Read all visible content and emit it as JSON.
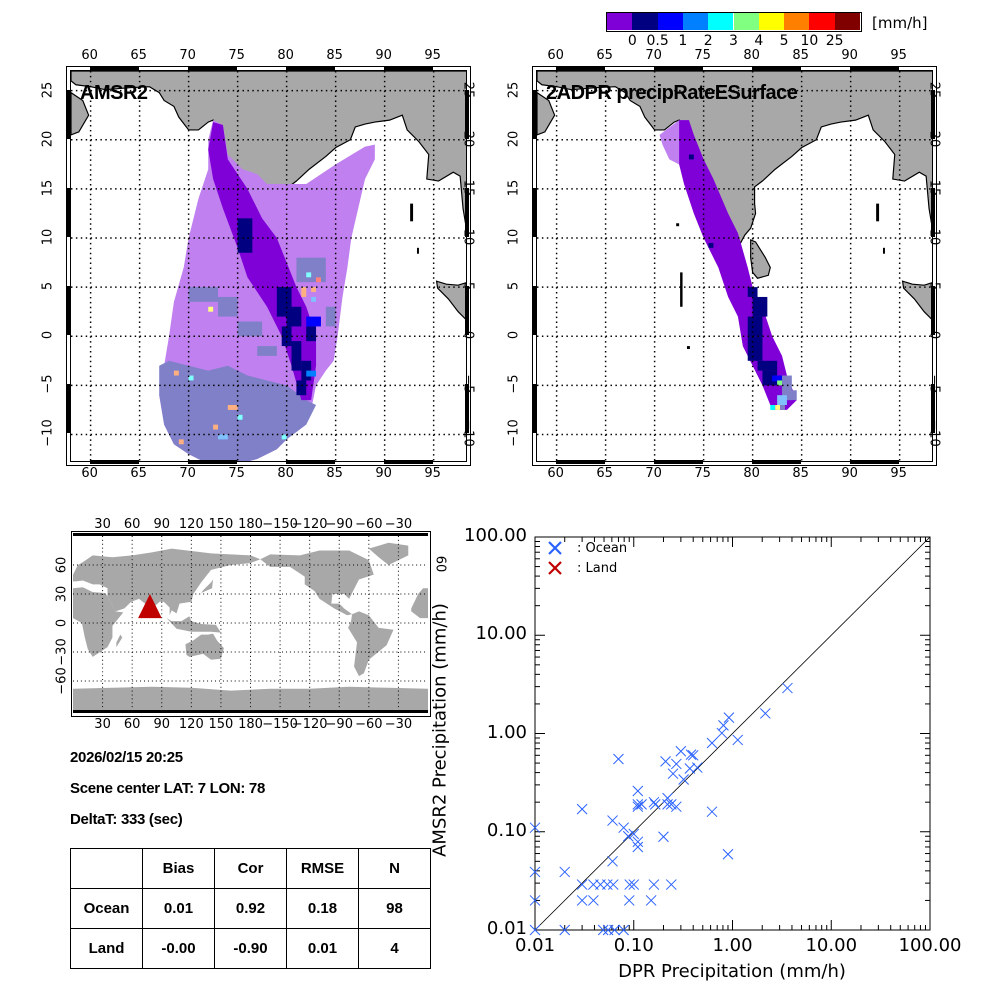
{
  "colorbar": {
    "colors": [
      "#8000d8",
      "#000080",
      "#0000ff",
      "#0080ff",
      "#00ffff",
      "#80ff80",
      "#ffff00",
      "#ff8000",
      "#ff0000",
      "#800000"
    ],
    "labels": [
      "0",
      "0.5",
      "1",
      "2",
      "3",
      "4",
      "5",
      "10",
      "25"
    ],
    "unit": "[mm/h]"
  },
  "maps": [
    {
      "title": "AMSR2"
    },
    {
      "title": "2ADPR precipRateESurface"
    }
  ],
  "map_axes": {
    "lon_ticks": [
      "60",
      "65",
      "70",
      "75",
      "80",
      "85",
      "90",
      "95"
    ],
    "lat_ticks": [
      "25",
      "20",
      "15",
      "10",
      "5",
      "0",
      "−5",
      "−10"
    ]
  },
  "world_map": {
    "lon_ticks": [
      "30",
      "60",
      "90",
      "120",
      "150",
      "180",
      "−150",
      "−120",
      "−90",
      "−60",
      "−30"
    ],
    "lat_ticks": [
      "60",
      "30",
      "0",
      "−30",
      "−60"
    ],
    "right_lat_ticks": [
      "60"
    ],
    "marker_color": "#c00000",
    "marker": {
      "lat": 7,
      "lon": 78
    }
  },
  "info": {
    "datetime": "2026/02/15 20:25",
    "scene_center": "Scene center LAT:  7   LON:  78",
    "deltat": "DeltaT:  333 (sec)"
  },
  "stats_table": {
    "headers": [
      "",
      "Bias",
      "Cor",
      "RMSE",
      "N"
    ],
    "rows": [
      [
        "Ocean",
        "0.01",
        "0.92",
        "0.18",
        "98"
      ],
      [
        "Land",
        "-0.00",
        "-0.90",
        "0.01",
        "4"
      ]
    ]
  },
  "chart_data": {
    "type": "scatter",
    "xscale": "log",
    "yscale": "log",
    "xlim": [
      0.01,
      100
    ],
    "ylim": [
      0.01,
      100
    ],
    "xlabel": "DPR Precipitation (mm/h)",
    "ylabel": "AMSR2 Precipitation (mm/h)",
    "xticks": [
      "0.01",
      "0.10",
      "1.00",
      "10.00",
      "100.00"
    ],
    "yticks": [
      "0.01",
      "0.10",
      "1.00",
      "10.00",
      "100.00"
    ],
    "legend_position": "top-left",
    "one_to_one_line": true,
    "series": [
      {
        "name": ": Ocean",
        "color": "#2a62ff",
        "points": [
          [
            3.6,
            2.9
          ],
          [
            2.15,
            1.6
          ],
          [
            0.92,
            1.45
          ],
          [
            0.81,
            1.21
          ],
          [
            0.78,
            1.01
          ],
          [
            1.13,
            0.86
          ],
          [
            0.62,
            0.8
          ],
          [
            0.07,
            0.55
          ],
          [
            0.3,
            0.66
          ],
          [
            0.38,
            0.61
          ],
          [
            0.4,
            0.6
          ],
          [
            0.21,
            0.52
          ],
          [
            0.27,
            0.49
          ],
          [
            0.44,
            0.45
          ],
          [
            0.37,
            0.44
          ],
          [
            0.25,
            0.39
          ],
          [
            0.32,
            0.34
          ],
          [
            0.11,
            0.26
          ],
          [
            0.11,
            0.19
          ],
          [
            0.11,
            0.18
          ],
          [
            0.12,
            0.19
          ],
          [
            0.16,
            0.2
          ],
          [
            0.165,
            0.19
          ],
          [
            0.22,
            0.22
          ],
          [
            0.22,
            0.19
          ],
          [
            0.24,
            0.19
          ],
          [
            0.27,
            0.18
          ],
          [
            0.03,
            0.17
          ],
          [
            0.62,
            0.16
          ],
          [
            0.061,
            0.13
          ],
          [
            0.01,
            0.11
          ],
          [
            0.079,
            0.11
          ],
          [
            0.1,
            0.095
          ],
          [
            0.088,
            0.09
          ],
          [
            0.2,
            0.089
          ],
          [
            0.11,
            0.079
          ],
          [
            0.11,
            0.07
          ],
          [
            0.9,
            0.059
          ],
          [
            0.061,
            0.05
          ],
          [
            0.01,
            0.039
          ],
          [
            0.02,
            0.039
          ],
          [
            0.03,
            0.029
          ],
          [
            0.039,
            0.029
          ],
          [
            0.046,
            0.029
          ],
          [
            0.054,
            0.029
          ],
          [
            0.062,
            0.029
          ],
          [
            0.091,
            0.029
          ],
          [
            0.1,
            0.029
          ],
          [
            0.16,
            0.029
          ],
          [
            0.24,
            0.029
          ],
          [
            0.01,
            0.02
          ],
          [
            0.03,
            0.02
          ],
          [
            0.039,
            0.02
          ],
          [
            0.09,
            0.02
          ],
          [
            0.15,
            0.02
          ],
          [
            0.01,
            0.01
          ],
          [
            0.02,
            0.01
          ],
          [
            0.049,
            0.01
          ],
          [
            0.055,
            0.01
          ],
          [
            0.064,
            0.01
          ],
          [
            0.079,
            0.01
          ]
        ]
      },
      {
        "name": ": Land",
        "color": "#c00000",
        "points": []
      }
    ]
  }
}
